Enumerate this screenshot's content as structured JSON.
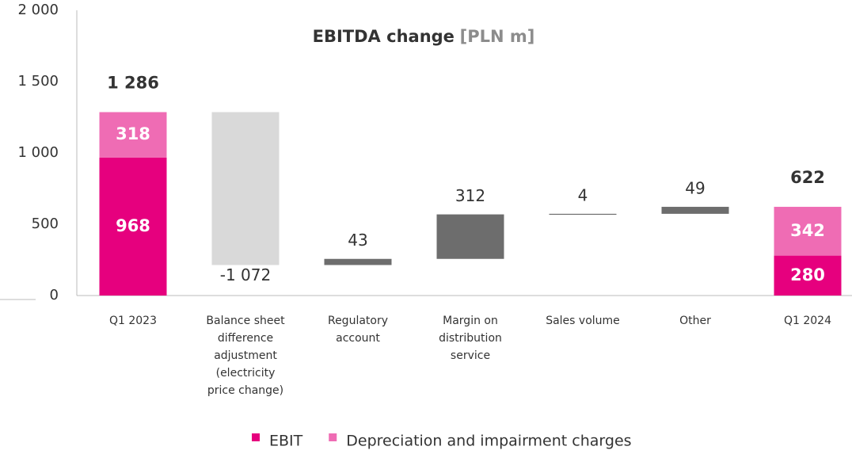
{
  "chart_data": {
    "type": "waterfall",
    "title": "EBITDA change",
    "unit": "[PLN m]",
    "categories": [
      "Q1 2023",
      "Balance sheet difference adjustment (electricity price change)",
      "Regulatory account",
      "Margin on distribution service",
      "Sales volume",
      "Other",
      "Q1 2024"
    ],
    "series": [
      {
        "name": "EBIT",
        "color": "#e6007e",
        "values": [
          968,
          null,
          null,
          null,
          null,
          null,
          280
        ]
      },
      {
        "name": "Depreciation and impairment charges",
        "color": "#ef6cb4",
        "values": [
          318,
          null,
          null,
          null,
          null,
          null,
          342
        ]
      }
    ],
    "changes": {
      "values": [
        null,
        -1072,
        43,
        312,
        4,
        49,
        null
      ],
      "value_labels": [
        null,
        "-1 072",
        null,
        null,
        null,
        null,
        null
      ],
      "color": "#6d6d6d",
      "negative_color": "#d9d9d9"
    },
    "totals": {
      "values": [
        1286,
        null,
        null,
        null,
        null,
        null,
        622
      ],
      "value_labels": [
        "1 286",
        null,
        null,
        null,
        null,
        null,
        "622"
      ]
    },
    "ylim": [
      0,
      2000
    ],
    "yticks": [
      0,
      500,
      {
        "value": 1000,
        "label": "1 000"
      },
      {
        "value": 1500,
        "label": "1 500"
      },
      {
        "value": 2000,
        "label": "2 000"
      }
    ]
  }
}
